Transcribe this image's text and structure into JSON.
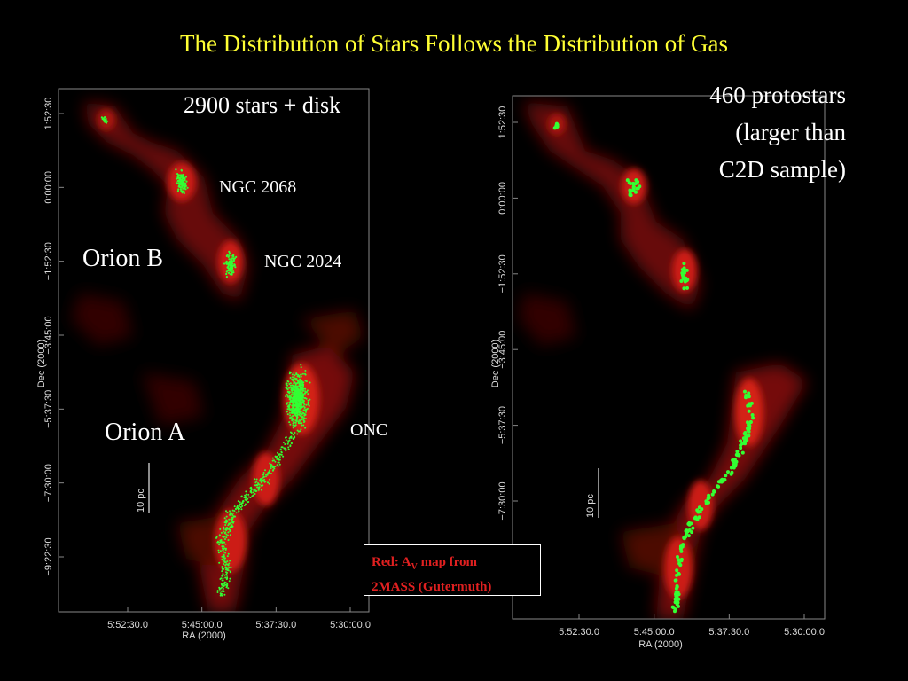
{
  "title": "The Distribution of Stars Follows the Distribution of Gas",
  "left_panel": {
    "caption": "2900 stars + disk",
    "labels": {
      "ngc2068": "NGC 2068",
      "ngc2024": "NGC 2024",
      "orion_b": "Orion B",
      "orion_a": "Orion A",
      "onc": "ONC"
    },
    "scale_bar": "10 pc",
    "x_ticks": [
      "5:52:30.0",
      "5:45:00.0",
      "5:37:30.0",
      "5:30:00.0"
    ],
    "y_ticks": [
      "1:52:30",
      "0:00:00",
      "−1:52:30",
      "−3:45:00",
      "−5:37:30",
      "−7:30:00",
      "−9:22:30"
    ],
    "x_label": "RA (2000)",
    "y_label": "Dec (2000)"
  },
  "right_panel": {
    "caption_lines": [
      "460 protostars",
      "(larger than",
      "C2D sample)"
    ],
    "scale_bar": "10 pc",
    "x_ticks": [
      "5:52:30.0",
      "5:45:00.0",
      "5:37:30.0",
      "5:30:00.0"
    ],
    "y_ticks": [
      "1:52:30",
      "0:00:00",
      "−1:52:30",
      "−3:45:00",
      "−5:37:30",
      "−7:30:00"
    ],
    "x_label": "RA (2000)",
    "y_label": "Dec (2000)"
  },
  "legend": {
    "line1_prefix": "Red:  A",
    "line1_sub": "V",
    "line1_suffix": " map from",
    "line2": "2MASS (Gutermuth)"
  },
  "colors": {
    "title": "#ffff33",
    "gas": "#cc1a12",
    "stars": "#33ff33",
    "legend_text": "#e02020"
  }
}
